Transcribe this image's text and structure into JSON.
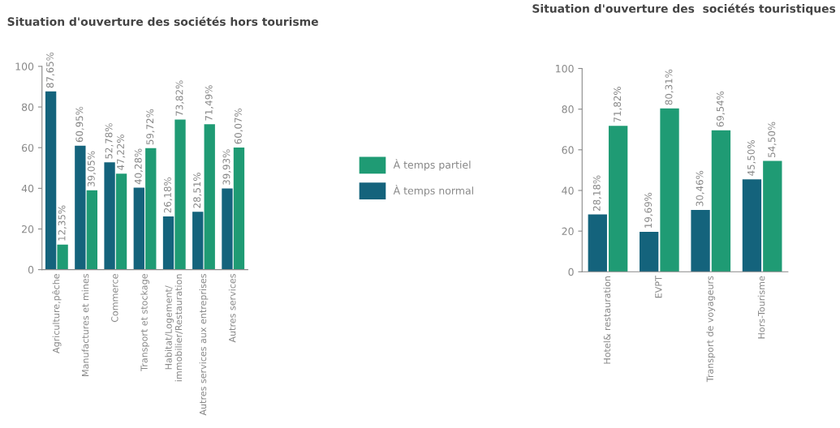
{
  "chart_data": [
    {
      "type": "bar",
      "title": "Situation d'ouverture des sociétés hors tourisme",
      "categories": [
        "Agriculture,pêche",
        "Manufactures et mines",
        "Commerce",
        "Transport et stockage",
        "Habitat/Logement/\nimmobilier/Restauration",
        "Autres services aux entreprises",
        "Autres services"
      ],
      "series": [
        {
          "name": "À temps normal",
          "color": "#14637c",
          "values": [
            87.65,
            60.95,
            52.78,
            40.28,
            26.18,
            28.51,
            39.93
          ],
          "value_labels": [
            "87,65%",
            "60,95%",
            "52,78%",
            "40,28%",
            "26,18%",
            "28,51%",
            "39,93%"
          ]
        },
        {
          "name": "À temps partiel",
          "color": "#1f9b74",
          "values": [
            12.35,
            39.05,
            47.22,
            59.72,
            73.82,
            71.49,
            60.07
          ],
          "value_labels": [
            "12,35%",
            "39,05%",
            "47,22%",
            "59,72%",
            "73,82%",
            "71,49%",
            "60,07%"
          ]
        }
      ],
      "ylim": [
        0,
        100
      ],
      "yticks": [
        0,
        20,
        40,
        60,
        80,
        100
      ],
      "grid": false,
      "legend": "right"
    },
    {
      "type": "bar",
      "title": "Situation d'ouverture des  sociétés touristiques",
      "categories": [
        "Hotel& restauration",
        "EVPT",
        "Transport de voyageurs",
        "Hors-Tourisme"
      ],
      "series": [
        {
          "color": "#14637c",
          "values": [
            28.18,
            19.69,
            30.46,
            45.5
          ],
          "value_labels": [
            "28,18%",
            "19,69%",
            "30,46%",
            "45,50%"
          ]
        },
        {
          "color": "#1f9b74",
          "values": [
            71.82,
            80.31,
            69.54,
            54.5
          ],
          "value_labels": [
            "71,82%",
            "80,31%",
            "69,54%",
            "54,50%"
          ]
        }
      ],
      "ylim": [
        0,
        100
      ],
      "yticks": [
        0,
        20,
        40,
        60,
        80,
        100
      ],
      "grid": false
    }
  ]
}
